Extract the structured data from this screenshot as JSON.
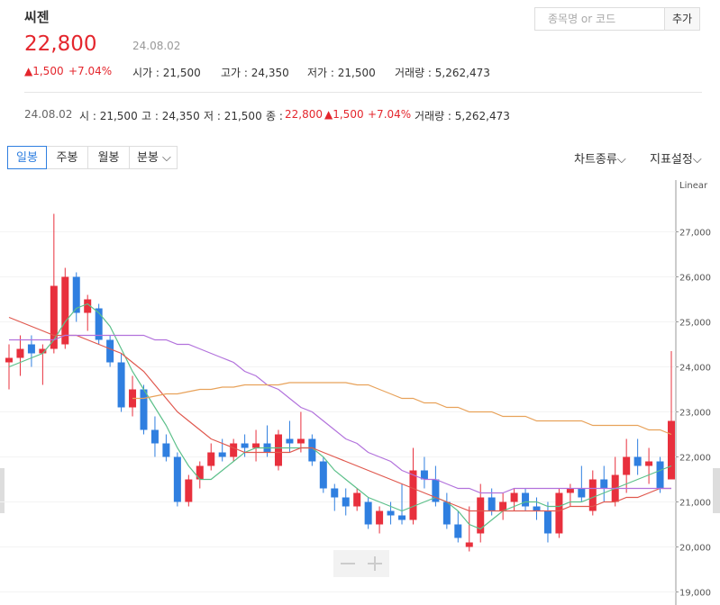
{
  "header": {
    "name": "씨젠",
    "price": "22,800",
    "date": "24.08.02",
    "change": "▲1,500",
    "change_pct": "+7.04%",
    "stats": [
      "시가 : 21,500",
      "고가 : 24,350",
      "저가 : 21,500",
      "거래량 : 5,262,473"
    ],
    "search_placeholder": "종목명 or 코드",
    "add_button": "추가"
  },
  "detail": {
    "date": "24.08.02",
    "open": "시 : 21,500",
    "high": "고 : 24,350",
    "low": "저 : 21,500",
    "close_label": "종 :",
    "close": "22,800",
    "change": "▲1,500",
    "change_pct": "+7.04%",
    "volume": "거래량 : 5,262,473"
  },
  "toolbar": {
    "tabs": [
      "일봉",
      "주봉",
      "월봉",
      "분봉"
    ],
    "chart_type": "차트종류",
    "indicator": "지표설정"
  },
  "chart_data": {
    "type": "candlestick",
    "scale_label": "Linear",
    "up_color": "#e8303d",
    "down_color": "#2f7fe0",
    "grid": true,
    "ylim": [
      18850,
      28050
    ],
    "yticks": [
      {
        "value": 19000,
        "label": "19,000"
      },
      {
        "value": 20000,
        "label": "20,000"
      },
      {
        "value": 21000,
        "label": "21,000"
      },
      {
        "value": 22000,
        "label": "22,000"
      },
      {
        "value": 23000,
        "label": "23,000"
      },
      {
        "value": 24000,
        "label": "24,000"
      },
      {
        "value": 25000,
        "label": "25,000"
      },
      {
        "value": 26000,
        "label": "26,000"
      },
      {
        "value": 27000,
        "label": "27,000"
      }
    ],
    "open": [
      24100,
      24200,
      24500,
      24300,
      24400,
      24500,
      26000,
      25200,
      25300,
      24600,
      24100,
      23100,
      23500,
      22600,
      22300,
      22000,
      21000,
      21500,
      21800,
      22100,
      22000,
      22300,
      22200,
      22300,
      21800,
      22400,
      22300,
      22400,
      21900,
      21300,
      21100,
      20900,
      21000,
      20500,
      20800,
      20700,
      20600,
      21700,
      21500,
      21000,
      20500,
      20000,
      20300,
      21100,
      20800,
      21000,
      21200,
      20900,
      20800,
      20300,
      21200,
      21300,
      20800,
      21500,
      21000,
      21600,
      22000,
      21800,
      21900,
      21500
    ],
    "high": [
      24500,
      24700,
      24700,
      24500,
      27400,
      26200,
      26100,
      25600,
      25400,
      24700,
      24300,
      23800,
      23600,
      22900,
      22500,
      22100,
      21600,
      21900,
      22300,
      22400,
      22400,
      22500,
      22600,
      22700,
      22600,
      22800,
      23000,
      22500,
      22000,
      21400,
      21300,
      21300,
      21100,
      20900,
      21000,
      21400,
      22200,
      22000,
      21800,
      21200,
      20800,
      20900,
      21400,
      21300,
      21200,
      21300,
      21300,
      21100,
      21000,
      21300,
      21400,
      21800,
      21700,
      21800,
      22000,
      22400,
      22400,
      22200,
      22000,
      24350
    ],
    "low": [
      23500,
      23800,
      24000,
      23600,
      24300,
      24400,
      25000,
      24800,
      24500,
      24000,
      23000,
      22900,
      22500,
      22000,
      21900,
      20900,
      20900,
      21300,
      21700,
      21900,
      21900,
      22000,
      21900,
      22000,
      21700,
      22100,
      22100,
      21800,
      21200,
      20800,
      20700,
      20800,
      20400,
      20300,
      20500,
      20500,
      20500,
      21300,
      20900,
      20400,
      20100,
      19900,
      20100,
      20700,
      20600,
      20800,
      20800,
      20600,
      20100,
      20200,
      20900,
      21000,
      20700,
      21000,
      20900,
      21200,
      21600,
      21400,
      21200,
      21500
    ],
    "close": [
      24200,
      24400,
      24300,
      24400,
      25800,
      26000,
      25200,
      25500,
      24600,
      24100,
      23100,
      23500,
      22600,
      22300,
      22000,
      21000,
      21500,
      21800,
      22100,
      22000,
      22300,
      22200,
      22300,
      22100,
      22500,
      22300,
      22400,
      21900,
      21300,
      21100,
      20900,
      21200,
      20500,
      20800,
      20700,
      20600,
      21700,
      21500,
      21000,
      20500,
      20200,
      20100,
      21100,
      20800,
      21000,
      21200,
      20900,
      20800,
      20300,
      21200,
      21300,
      21100,
      21500,
      21300,
      21600,
      22000,
      21800,
      21900,
      21300,
      22800
    ],
    "lines": [
      {
        "color": "#5cc08a",
        "values": [
          24000,
          24100,
          24200,
          24300,
          24600,
          25000,
          25300,
          25400,
          25200,
          24900,
          24400,
          23900,
          23500,
          23100,
          22700,
          22200,
          21800,
          21500,
          21500,
          21700,
          21900,
          22100,
          22200,
          22200,
          22200,
          22200,
          22200,
          22200,
          22000,
          21700,
          21500,
          21300,
          21100,
          21000,
          20900,
          20800,
          20900,
          21000,
          21100,
          21000,
          20800,
          20500,
          20400,
          20600,
          20800,
          20900,
          21000,
          21000,
          20900,
          20900,
          21000,
          21000,
          21100,
          21200,
          21300,
          21400,
          21500,
          21600,
          21700,
          21800
        ]
      },
      {
        "color": "#e0584e",
        "values": [
          25100,
          25000,
          24900,
          24800,
          24700,
          24700,
          24700,
          24600,
          24500,
          24400,
          24300,
          24100,
          23900,
          23600,
          23300,
          23000,
          22800,
          22600,
          22400,
          22300,
          22200,
          22100,
          22100,
          22100,
          22100,
          22100,
          22200,
          22200,
          22100,
          22000,
          21900,
          21800,
          21700,
          21600,
          21500,
          21400,
          21300,
          21200,
          21100,
          21000,
          20900,
          20800,
          20800,
          20800,
          20800,
          20800,
          20800,
          20800,
          20800,
          20800,
          20900,
          20900,
          20900,
          21000,
          21000,
          21100,
          21100,
          21200,
          21300,
          21300
        ]
      },
      {
        "color": "#b272dc",
        "values": [
          24600,
          24600,
          24600,
          24600,
          24600,
          24700,
          24700,
          24700,
          24700,
          24700,
          24700,
          24700,
          24700,
          24600,
          24600,
          24500,
          24500,
          24400,
          24300,
          24200,
          24100,
          23900,
          23800,
          23600,
          23500,
          23300,
          23100,
          23000,
          22800,
          22600,
          22400,
          22300,
          22100,
          22000,
          21900,
          21700,
          21600,
          21500,
          21500,
          21400,
          21300,
          21300,
          21200,
          21200,
          21200,
          21300,
          21300,
          21300,
          21300,
          21300,
          21300,
          21300,
          21300,
          21300,
          21300,
          21300,
          21300,
          21300,
          21300,
          21300
        ]
      },
      {
        "color": "#e8a25a",
        "values": [
          null,
          null,
          null,
          null,
          null,
          null,
          null,
          null,
          null,
          null,
          null,
          23300,
          23300,
          23350,
          23400,
          23400,
          23450,
          23500,
          23500,
          23550,
          23550,
          23600,
          23600,
          23600,
          23600,
          23650,
          23650,
          23650,
          23650,
          23650,
          23650,
          23600,
          23600,
          23500,
          23400,
          23300,
          23300,
          23200,
          23200,
          23100,
          23100,
          23000,
          23000,
          23000,
          22900,
          22900,
          22900,
          22800,
          22800,
          22800,
          22800,
          22800,
          22700,
          22700,
          22700,
          22700,
          22700,
          22600,
          22600,
          22500
        ]
      }
    ]
  }
}
